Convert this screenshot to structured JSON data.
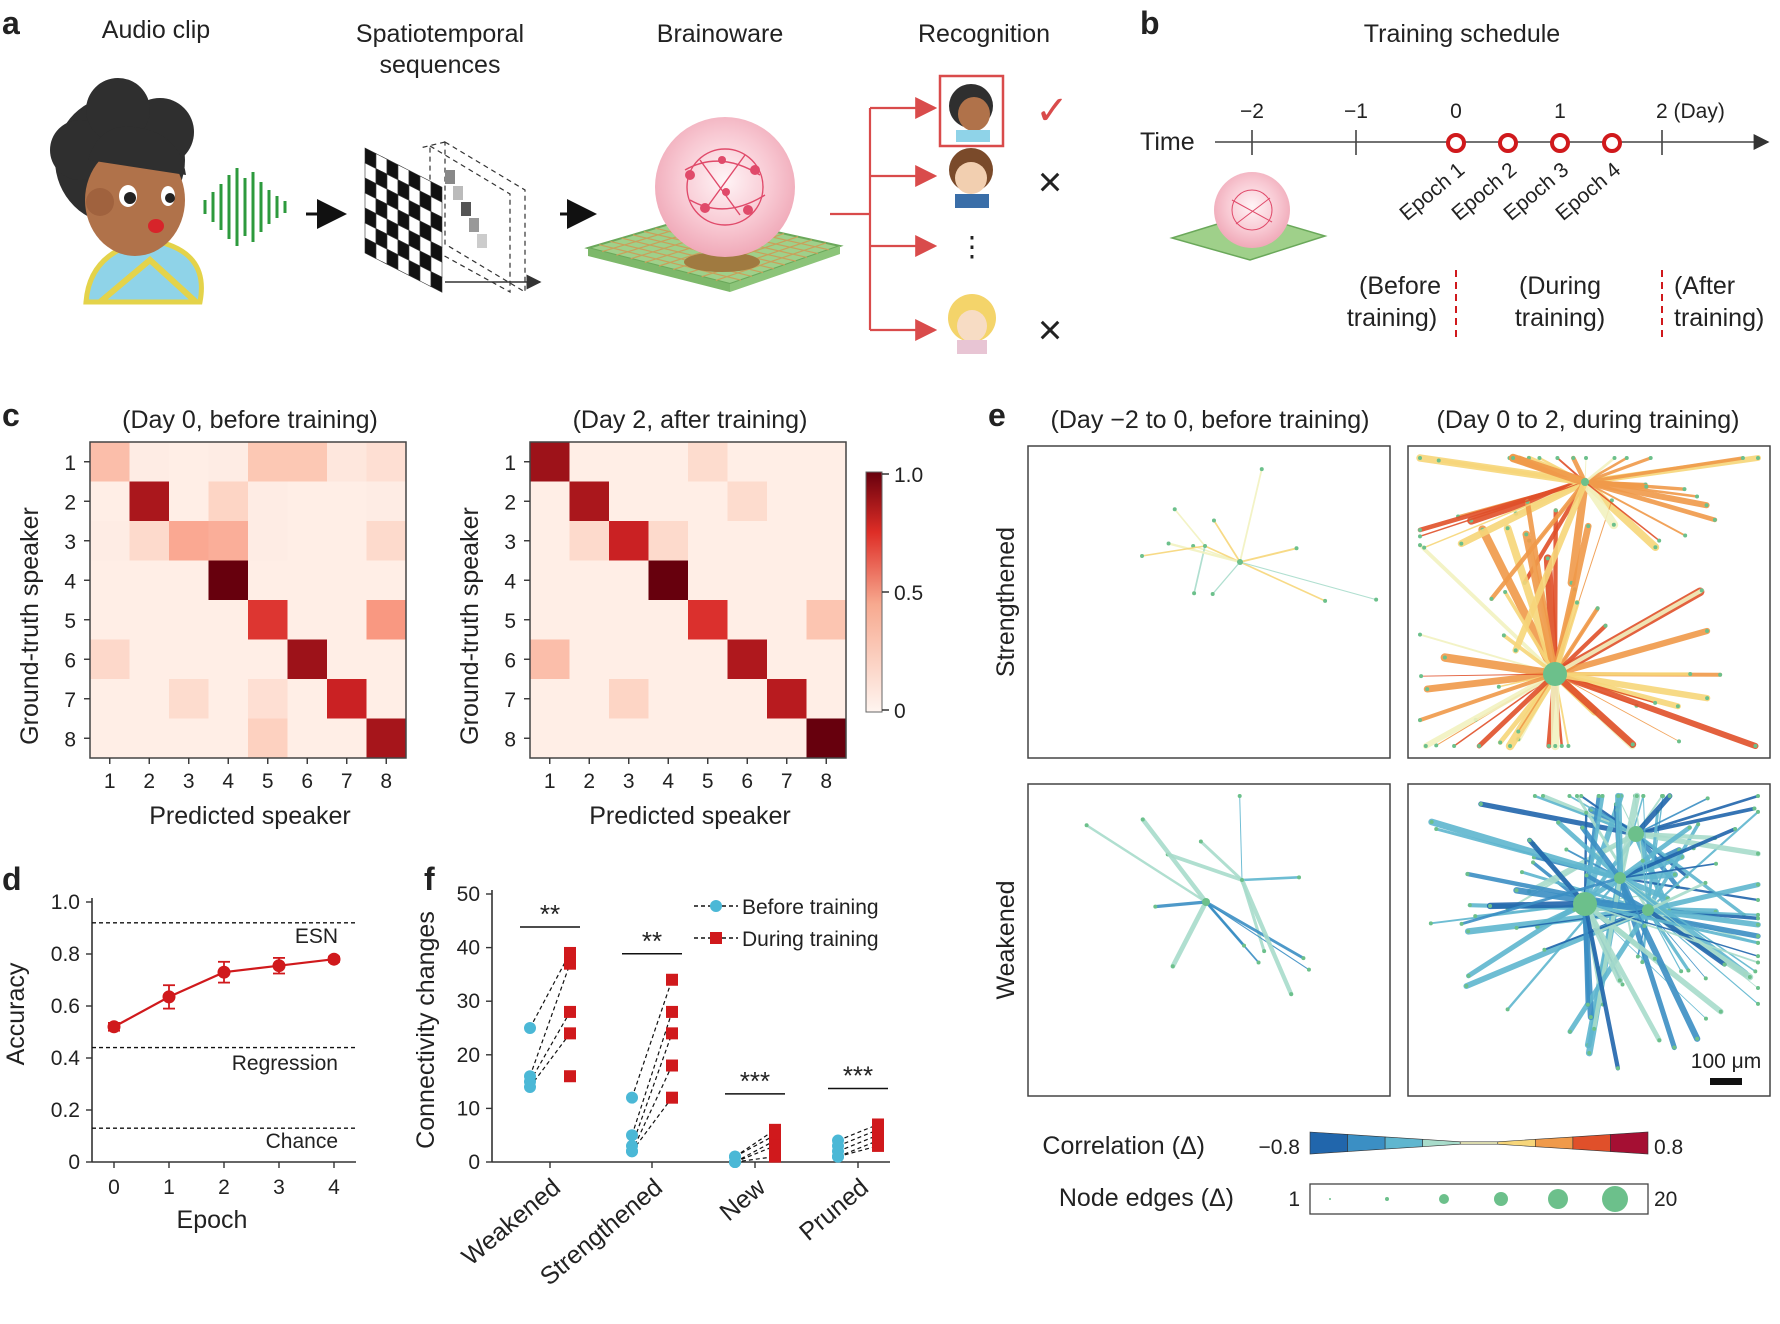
{
  "panel_labels": [
    "a",
    "b",
    "c",
    "d",
    "e",
    "f"
  ],
  "panel_a": {
    "headers": [
      "Audio clip",
      "Spatiotemporal",
      "sequences",
      "Brainoware",
      "Recognition"
    ],
    "marks": [
      "✓",
      "×",
      "⋮",
      "×"
    ]
  },
  "panel_b": {
    "title": "Training schedule",
    "time_label": "Time",
    "ticks": [
      "−2",
      "−1",
      "0",
      "1",
      "2 (Day)"
    ],
    "epochs": [
      "Epoch 1",
      "Epoch 2",
      "Epoch 3",
      "Epoch 4"
    ],
    "phases": [
      [
        "(Before",
        "training)"
      ],
      [
        "(During",
        "training)"
      ],
      [
        "(After",
        "training)"
      ]
    ]
  },
  "panel_c": {
    "subtitles": [
      "(Day 0, before training)",
      "(Day 2, after training)"
    ],
    "xlabel": "Predicted speaker",
    "ylabel": "Ground-truth speaker",
    "colorbar_ticks": [
      "1.0",
      "0.5",
      "0"
    ]
  },
  "panel_d": {
    "xlabel": "Epoch",
    "ylabel": "Accuracy",
    "ref_labels": [
      "ESN",
      "Regression",
      "Chance"
    ]
  },
  "panel_e": {
    "col_titles": [
      "(Day −2 to 0, before training)",
      "(Day 0 to 2, during training)"
    ],
    "row_labels": [
      "Strengthened",
      "Weakened"
    ],
    "scale_bar": "100 μm",
    "corr_label": "Correlation (Δ)",
    "corr_min": "−0.8",
    "corr_max": "0.8",
    "edges_label": "Node edges (Δ)",
    "edges_min": "1",
    "edges_max": "20",
    "corr_colors": [
      "#2166ac",
      "#3b8fc4",
      "#5fb6cf",
      "#a8dccb",
      "#f2f2c0",
      "#f7d67a",
      "#f09a4a",
      "#e0502a",
      "#a50f33"
    ],
    "node_color": "#6cc08b"
  },
  "panel_f": {
    "ylabel": "Connectivity changes",
    "legend": [
      "Before training",
      "During training"
    ],
    "significance": [
      "**",
      "**",
      "***",
      "***"
    ],
    "colors": {
      "before": "#4bb8d6",
      "during": "#d0191c"
    }
  },
  "chart_data": [
    {
      "panel": "c-left",
      "type": "heatmap",
      "title": "(Day 0, before training)",
      "xlabel": "Predicted speaker",
      "ylabel": "Ground-truth speaker",
      "x": [
        "1",
        "2",
        "3",
        "4",
        "5",
        "6",
        "7",
        "8"
      ],
      "y": [
        "1",
        "2",
        "3",
        "4",
        "5",
        "6",
        "7",
        "8"
      ],
      "zlim": [
        0,
        1.0
      ],
      "z": [
        [
          0.28,
          0.05,
          0.04,
          0.05,
          0.25,
          0.25,
          0.08,
          0.12
        ],
        [
          0.04,
          0.85,
          0.04,
          0.18,
          0.05,
          0.04,
          0.04,
          0.05
        ],
        [
          0.05,
          0.15,
          0.35,
          0.33,
          0.05,
          0.04,
          0.04,
          0.15
        ],
        [
          0.04,
          0.04,
          0.04,
          1.0,
          0.04,
          0.04,
          0.04,
          0.04
        ],
        [
          0.04,
          0.04,
          0.04,
          0.04,
          0.7,
          0.04,
          0.04,
          0.4
        ],
        [
          0.16,
          0.04,
          0.04,
          0.04,
          0.04,
          0.88,
          0.04,
          0.04
        ],
        [
          0.04,
          0.04,
          0.14,
          0.04,
          0.12,
          0.04,
          0.78,
          0.04
        ],
        [
          0.04,
          0.04,
          0.04,
          0.04,
          0.2,
          0.04,
          0.04,
          0.86
        ]
      ]
    },
    {
      "panel": "c-right",
      "type": "heatmap",
      "title": "(Day 2, after training)",
      "xlabel": "Predicted speaker",
      "ylabel": "Ground-truth speaker",
      "x": [
        "1",
        "2",
        "3",
        "4",
        "5",
        "6",
        "7",
        "8"
      ],
      "y": [
        "1",
        "2",
        "3",
        "4",
        "5",
        "6",
        "7",
        "8"
      ],
      "zlim": [
        0,
        1.0
      ],
      "z": [
        [
          0.88,
          0.04,
          0.04,
          0.04,
          0.14,
          0.04,
          0.04,
          0.04
        ],
        [
          0.04,
          0.85,
          0.04,
          0.04,
          0.04,
          0.14,
          0.04,
          0.04
        ],
        [
          0.04,
          0.15,
          0.78,
          0.15,
          0.04,
          0.04,
          0.04,
          0.04
        ],
        [
          0.04,
          0.04,
          0.04,
          1.0,
          0.04,
          0.04,
          0.04,
          0.04
        ],
        [
          0.04,
          0.04,
          0.04,
          0.04,
          0.72,
          0.04,
          0.04,
          0.26
        ],
        [
          0.28,
          0.04,
          0.04,
          0.04,
          0.04,
          0.84,
          0.04,
          0.04
        ],
        [
          0.04,
          0.04,
          0.18,
          0.04,
          0.04,
          0.04,
          0.82,
          0.04
        ],
        [
          0.04,
          0.04,
          0.04,
          0.04,
          0.04,
          0.04,
          0.04,
          1.0
        ]
      ]
    },
    {
      "panel": "d",
      "type": "line",
      "xlabel": "Epoch",
      "ylabel": "Accuracy",
      "x": [
        0,
        1,
        2,
        3,
        4
      ],
      "xticks": [
        "0",
        "1",
        "2",
        "3",
        "4"
      ],
      "yticks": [
        "0",
        "0.2",
        "0.4",
        "0.6",
        "0.8",
        "1.0"
      ],
      "xlim": [
        -0.4,
        4.4
      ],
      "ylim": [
        0,
        1.0
      ],
      "series": [
        {
          "values": [
            0.52,
            0.635,
            0.73,
            0.755,
            0.78
          ],
          "error": [
            0.015,
            0.045,
            0.04,
            0.03,
            0.01
          ]
        }
      ],
      "reference_lines": [
        {
          "label": "ESN",
          "value": 0.92
        },
        {
          "label": "Regression",
          "value": 0.44
        },
        {
          "label": "Chance",
          "value": 0.13
        }
      ]
    },
    {
      "panel": "f",
      "type": "scatter",
      "ylabel": "Connectivity changes",
      "categories": [
        "Weakened",
        "Strengthened",
        "New",
        "Pruned"
      ],
      "yticks": [
        "0",
        "10",
        "20",
        "30",
        "40",
        "50"
      ],
      "ylim": [
        0,
        50
      ],
      "series": [
        {
          "name": "Before training",
          "values": [
            [
              25,
              16,
              15,
              14
            ],
            [
              12,
              5,
              3,
              2,
              2
            ],
            [
              1,
              1,
              0,
              0,
              0
            ],
            [
              4,
              3,
              2,
              1,
              1
            ]
          ]
        },
        {
          "name": "During training",
          "values": [
            [
              39,
              37,
              28,
              24,
              16
            ],
            [
              34,
              28,
              24,
              18,
              12
            ],
            [
              6,
              5,
              4,
              3,
              1
            ],
            [
              7,
              6,
              5,
              4,
              3
            ]
          ]
        }
      ],
      "significance": [
        "**",
        "**",
        "***",
        "***"
      ]
    }
  ]
}
